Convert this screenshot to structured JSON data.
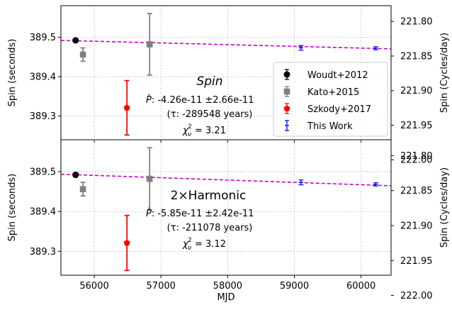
{
  "chart_data": [
    {
      "type": "scatter",
      "panel": "top",
      "ylabel": "Spin (seconds)",
      "ylabel_right": "Spin (Cycles/day)",
      "xlim": [
        55500,
        60450
      ],
      "ylim": [
        389.24,
        389.58
      ],
      "yticks": [
        "389.3",
        "389.4",
        "389.5"
      ],
      "yticks_right": [
        "221.80",
        "221.85",
        "221.90",
        "221.95",
        "222.00"
      ],
      "grid": true,
      "legend_position": "center-right",
      "series": [
        {
          "name": "Woudt+2012",
          "color": "#000000",
          "marker": "circle",
          "points": [
            {
              "x": 55720,
              "y": 389.492,
              "err": 0.002
            }
          ]
        },
        {
          "name": "Kato+2015",
          "color": "#808080",
          "marker": "square",
          "points": [
            {
              "x": 55830,
              "y": 389.456,
              "err": 0.017
            },
            {
              "x": 56830,
              "y": 389.482,
              "err": 0.078
            }
          ]
        },
        {
          "name": "Szkody+2017",
          "color": "#ff0000",
          "marker": "pentagon",
          "points": [
            {
              "x": 56490,
              "y": 389.321,
              "err": 0.069
            }
          ]
        },
        {
          "name": "This Work",
          "color": "#0000ff",
          "marker": "cap",
          "points": [
            {
              "x": 59100,
              "y": 389.473,
              "err": 0.006
            },
            {
              "x": 60220,
              "y": 389.472,
              "err": 0.004
            }
          ]
        }
      ],
      "fit": {
        "color": "#cc00cc",
        "x": [
          55500,
          60450
        ],
        "y": [
          389.492,
          389.4705
        ]
      },
      "annotations": {
        "title": "Spin",
        "pdot": "-4.26e-11 ±2.66e-11",
        "tau": "(τ: -289548 years)",
        "chi2": "= 3.21"
      }
    },
    {
      "type": "scatter",
      "panel": "bottom",
      "xlabel": "MJD",
      "ylabel": "Spin (seconds)",
      "ylabel_right": "Spin (Cycles/day)",
      "xlim": [
        55500,
        60450
      ],
      "ylim": [
        389.24,
        389.58
      ],
      "xticks": [
        "56000",
        "57000",
        "58000",
        "59000",
        "60000"
      ],
      "yticks": [
        "389.3",
        "389.4",
        "389.5"
      ],
      "yticks_right": [
        "221.80",
        "221.85",
        "221.90",
        "221.95",
        "222.00"
      ],
      "grid": true,
      "series": [
        {
          "name": "Woudt+2012",
          "color": "#000000",
          "marker": "circle",
          "points": [
            {
              "x": 55720,
              "y": 389.492,
              "err": 0.002
            }
          ]
        },
        {
          "name": "Kato+2015",
          "color": "#808080",
          "marker": "square",
          "points": [
            {
              "x": 55830,
              "y": 389.456,
              "err": 0.017
            },
            {
              "x": 56830,
              "y": 389.482,
              "err": 0.078
            }
          ]
        },
        {
          "name": "Szkody+2017",
          "color": "#ff0000",
          "marker": "pentagon",
          "points": [
            {
              "x": 56490,
              "y": 389.321,
              "err": 0.069
            }
          ]
        },
        {
          "name": "This Work",
          "color": "#0000ff",
          "marker": "cap",
          "points": [
            {
              "x": 59100,
              "y": 389.473,
              "err": 0.006
            },
            {
              "x": 60220,
              "y": 389.468,
              "err": 0.004
            }
          ]
        }
      ],
      "fit": {
        "color": "#cc00cc",
        "x": [
          55500,
          60450
        ],
        "y": [
          389.4935,
          389.4645
        ]
      },
      "annotations": {
        "title": "2×Harmonic",
        "pdot": "-5.85e-11 ±2.42e-11",
        "tau": "(τ: -211078 years)",
        "chi2": "= 3.12"
      }
    }
  ]
}
